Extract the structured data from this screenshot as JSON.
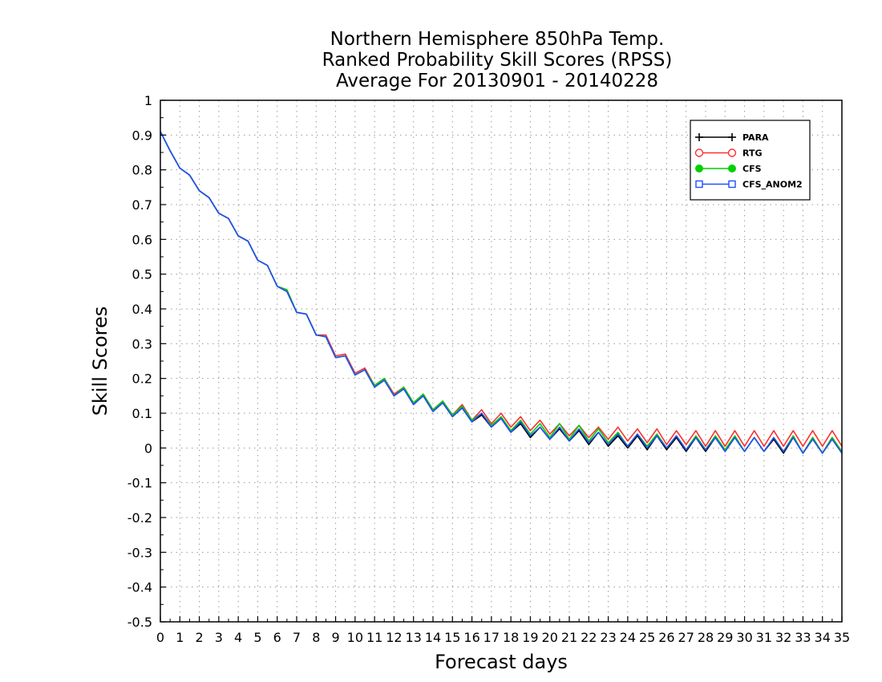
{
  "chart_data": {
    "type": "line",
    "title": "Northern Hemisphere 850hPa Temp.",
    "subtitle": "Ranked Probability Skill Scores (RPSS)",
    "subtitle2": "Average For 20130901 - 20140228",
    "xlabel": "Forecast days",
    "ylabel": "Skill Scores",
    "xlim": [
      0,
      35
    ],
    "ylim": [
      -0.5,
      1
    ],
    "grid": true,
    "legend_position": "top-right",
    "x_ticks": [
      "0",
      "1",
      "2",
      "3",
      "4",
      "5",
      "6",
      "7",
      "8",
      "9",
      "10",
      "11",
      "12",
      "13",
      "14",
      "15",
      "16",
      "17",
      "18",
      "19",
      "20",
      "21",
      "22",
      "23",
      "24",
      "25",
      "26",
      "27",
      "28",
      "29",
      "30",
      "31",
      "32",
      "33",
      "34",
      "35"
    ],
    "y_ticks": [
      "1",
      "0.9",
      "0.8",
      "0.7",
      "0.6",
      "0.5",
      "0.4",
      "0.3",
      "0.2",
      "0.1",
      "0",
      "-0.1",
      "-0.2",
      "-0.3",
      "-0.4",
      "-0.5"
    ],
    "x": [
      0,
      0.5,
      1,
      1.5,
      2,
      2.5,
      3,
      3.5,
      4,
      4.5,
      5,
      5.5,
      6,
      6.5,
      7,
      7.5,
      8,
      8.5,
      9,
      9.5,
      10,
      10.5,
      11,
      11.5,
      12,
      12.5,
      13,
      13.5,
      14,
      14.5,
      15,
      15.5,
      16,
      16.5,
      17,
      17.5,
      18,
      18.5,
      19,
      19.5,
      20,
      20.5,
      21,
      21.5,
      22,
      22.5,
      23,
      23.5,
      24,
      24.5,
      25,
      25.5,
      26,
      26.5,
      27,
      27.5,
      28,
      28.5,
      29,
      29.5,
      30,
      30.5,
      31,
      31.5,
      32,
      32.5,
      33,
      33.5,
      34,
      34.5,
      35
    ],
    "series": [
      {
        "name": "PARA",
        "color": "#000000",
        "marker": "plus",
        "values": [
          0.91,
          0.855,
          0.805,
          0.785,
          0.74,
          0.72,
          0.675,
          0.66,
          0.61,
          0.595,
          0.54,
          0.525,
          0.465,
          0.45,
          0.39,
          0.385,
          0.325,
          0.32,
          0.26,
          0.265,
          0.21,
          0.225,
          0.175,
          0.195,
          0.15,
          0.17,
          0.125,
          0.15,
          0.105,
          0.13,
          0.09,
          0.115,
          0.075,
          0.095,
          0.06,
          0.085,
          0.045,
          0.07,
          0.03,
          0.06,
          0.025,
          0.055,
          0.02,
          0.05,
          0.01,
          0.045,
          0.005,
          0.035,
          0.0,
          0.035,
          -0.005,
          0.035,
          -0.005,
          0.03,
          -0.01,
          0.03,
          -0.01,
          0.03,
          -0.01,
          0.03,
          -0.01,
          0.03,
          -0.01,
          0.025,
          -0.015,
          0.03,
          -0.015,
          0.03,
          -0.015,
          0.03,
          -0.015
        ]
      },
      {
        "name": "RTG",
        "color": "#ff3030",
        "marker": "circle-open",
        "values": [
          0.91,
          0.855,
          0.805,
          0.785,
          0.74,
          0.72,
          0.675,
          0.66,
          0.61,
          0.595,
          0.54,
          0.525,
          0.465,
          0.455,
          0.39,
          0.385,
          0.325,
          0.325,
          0.265,
          0.27,
          0.215,
          0.23,
          0.18,
          0.2,
          0.155,
          0.175,
          0.13,
          0.155,
          0.11,
          0.135,
          0.095,
          0.125,
          0.08,
          0.11,
          0.07,
          0.1,
          0.06,
          0.09,
          0.05,
          0.08,
          0.04,
          0.07,
          0.035,
          0.065,
          0.03,
          0.06,
          0.025,
          0.06,
          0.02,
          0.055,
          0.015,
          0.055,
          0.01,
          0.05,
          0.01,
          0.05,
          0.005,
          0.05,
          0.005,
          0.05,
          0.005,
          0.05,
          0.005,
          0.05,
          0.005,
          0.05,
          0.005,
          0.05,
          0.005,
          0.05,
          0.005
        ]
      },
      {
        "name": "CFS",
        "color": "#00d000",
        "marker": "circle-filled",
        "values": [
          0.91,
          0.855,
          0.805,
          0.785,
          0.74,
          0.72,
          0.675,
          0.66,
          0.61,
          0.595,
          0.54,
          0.525,
          0.465,
          0.455,
          0.39,
          0.385,
          0.325,
          0.32,
          0.26,
          0.265,
          0.21,
          0.225,
          0.18,
          0.2,
          0.15,
          0.175,
          0.13,
          0.155,
          0.11,
          0.135,
          0.095,
          0.12,
          0.08,
          0.1,
          0.065,
          0.09,
          0.05,
          0.08,
          0.04,
          0.07,
          0.03,
          0.07,
          0.025,
          0.065,
          0.02,
          0.055,
          0.015,
          0.045,
          0.005,
          0.04,
          0.005,
          0.04,
          0.0,
          0.035,
          -0.005,
          0.035,
          -0.005,
          0.035,
          -0.005,
          0.035,
          -0.01,
          0.03,
          -0.01,
          0.03,
          -0.01,
          0.035,
          -0.015,
          0.03,
          -0.015,
          0.03,
          -0.01
        ]
      },
      {
        "name": "CFS_ANOM2",
        "color": "#2050ff",
        "marker": "square-open",
        "values": [
          0.91,
          0.855,
          0.805,
          0.785,
          0.74,
          0.72,
          0.675,
          0.66,
          0.61,
          0.595,
          0.54,
          0.525,
          0.465,
          0.45,
          0.39,
          0.385,
          0.325,
          0.32,
          0.26,
          0.265,
          0.21,
          0.225,
          0.175,
          0.195,
          0.15,
          0.17,
          0.125,
          0.15,
          0.105,
          0.13,
          0.09,
          0.115,
          0.075,
          0.1,
          0.06,
          0.085,
          0.045,
          0.075,
          0.035,
          0.06,
          0.025,
          0.06,
          0.02,
          0.055,
          0.015,
          0.045,
          0.01,
          0.04,
          0.005,
          0.04,
          0.0,
          0.035,
          0.0,
          0.035,
          -0.005,
          0.03,
          -0.005,
          0.03,
          -0.01,
          0.03,
          -0.01,
          0.03,
          -0.01,
          0.03,
          -0.01,
          0.03,
          -0.015,
          0.025,
          -0.015,
          0.025,
          -0.015
        ]
      }
    ]
  }
}
